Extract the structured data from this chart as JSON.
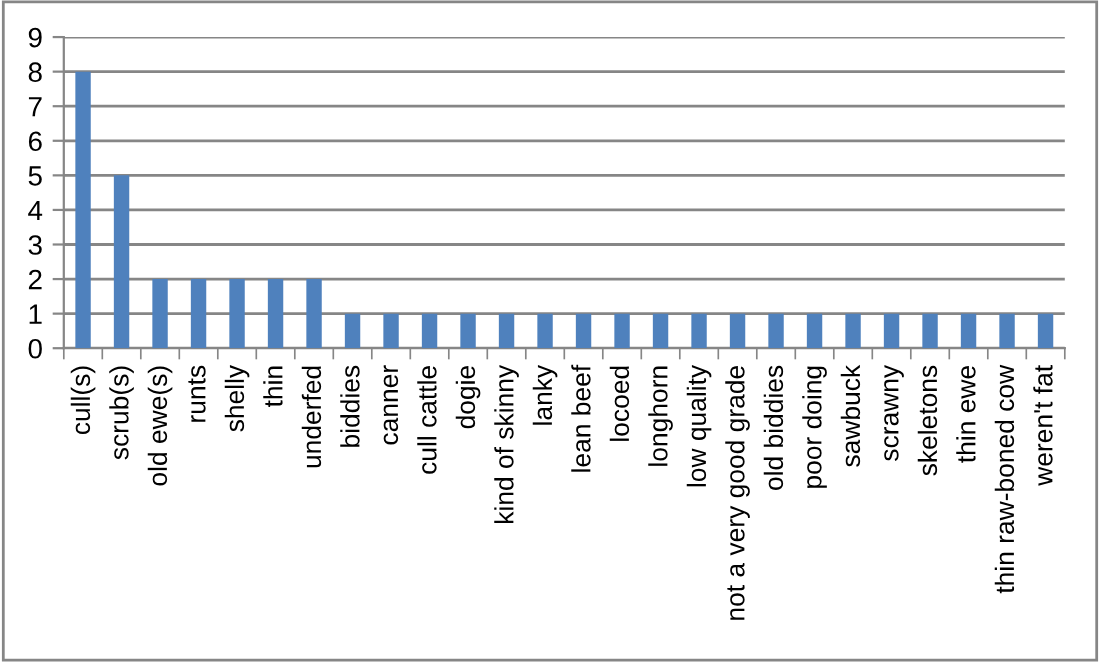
{
  "chart_data": {
    "type": "bar",
    "categories": [
      "cull(s)",
      "scrub(s)",
      "old ewe(s)",
      "runts",
      "shelly",
      "thin",
      "underfed",
      "biddies",
      "canner",
      "cull cattle",
      "dogie",
      "kind of skinny",
      "lanky",
      "lean beef",
      "locoed",
      "longhorn",
      "low quality",
      "not a very good grade",
      "old biddies",
      "poor doing",
      "sawbuck",
      "scrawny",
      "skeletons",
      "thin ewe",
      "thin raw-boned cow",
      "weren't fat"
    ],
    "values": [
      8,
      5,
      2,
      2,
      2,
      2,
      2,
      1,
      1,
      1,
      1,
      1,
      1,
      1,
      1,
      1,
      1,
      1,
      1,
      1,
      1,
      1,
      1,
      1,
      1,
      1
    ],
    "color": "#4f81bd",
    "ylim": [
      0,
      9
    ],
    "yticks": [
      0,
      1,
      2,
      3,
      4,
      5,
      6,
      7,
      8,
      9
    ],
    "grid": "y"
  }
}
